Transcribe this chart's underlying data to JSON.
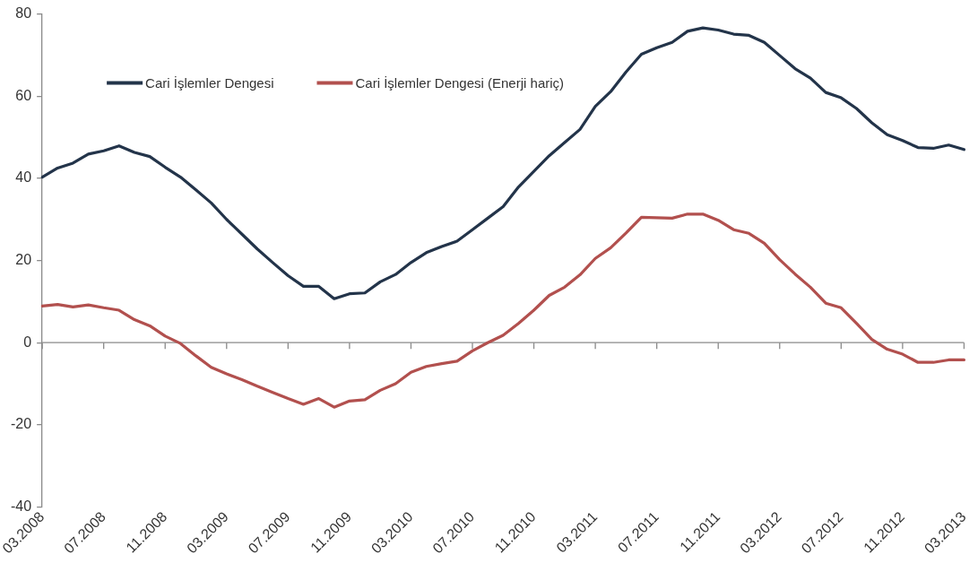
{
  "chart_data": {
    "type": "line",
    "categories": [
      "03.2008",
      null,
      null,
      null,
      "07.2008",
      null,
      null,
      null,
      "11.2008",
      null,
      null,
      null,
      "03.2009",
      null,
      null,
      null,
      "07.2009",
      null,
      null,
      null,
      "11.2009",
      null,
      null,
      null,
      "03.2010",
      null,
      null,
      null,
      "07.2010",
      null,
      null,
      null,
      "11.2010",
      null,
      null,
      null,
      "03.2011",
      null,
      null,
      null,
      "07.2011",
      null,
      null,
      null,
      "11.2011",
      null,
      null,
      null,
      "03.2012",
      null,
      null,
      null,
      "07.2012",
      null,
      null,
      null,
      "11.2012",
      null,
      null,
      null,
      "03.2013"
    ],
    "series": [
      {
        "name": "Cari İşlemler Dengesi",
        "color": "#23344a",
        "values": [
          40.3,
          42.5,
          43.7,
          45.9,
          46.7,
          47.9,
          46.3,
          45.3,
          42.7,
          40.3,
          37.2,
          34.0,
          30.0,
          26.4,
          22.8,
          19.5,
          16.3,
          13.7,
          13.7,
          10.7,
          11.9,
          12.1,
          14.8,
          16.6,
          19.5,
          21.9,
          23.4,
          24.7,
          27.5,
          30.3,
          33.1,
          37.9,
          41.7,
          45.5,
          48.7,
          51.9,
          57.5,
          61.1,
          65.9,
          70.2,
          71.8,
          73.1,
          75.8,
          76.6,
          76.1,
          75.1,
          74.8,
          73.1,
          69.9,
          66.7,
          64.4,
          60.9,
          59.6,
          57.0,
          53.5,
          50.6,
          49.2,
          47.5,
          47.3,
          48.1,
          47.0
        ]
      },
      {
        "name": "Cari İşlemler Dengesi (Enerji hariç)",
        "color": "#b2504e",
        "values": [
          8.9,
          9.3,
          8.7,
          9.2,
          8.5,
          7.9,
          5.6,
          4.1,
          1.6,
          -0.2,
          -3.2,
          -6.0,
          -7.6,
          -9.0,
          -10.6,
          -12.1,
          -13.6,
          -15.0,
          -13.6,
          -15.7,
          -14.2,
          -13.9,
          -11.6,
          -10.0,
          -7.2,
          -5.8,
          -5.1,
          -4.5,
          -2.0,
          0.0,
          1.8,
          4.7,
          7.9,
          11.5,
          13.5,
          16.5,
          20.5,
          23.1,
          26.7,
          30.5,
          30.4,
          30.3,
          31.3,
          31.3,
          29.8,
          27.5,
          26.6,
          24.2,
          20.2,
          16.7,
          13.5,
          9.6,
          8.5,
          4.7,
          0.8,
          -1.6,
          -2.8,
          -4.8,
          -4.8,
          -4.2,
          -4.2
        ]
      }
    ],
    "ylim": [
      -40,
      80
    ],
    "yticks": [
      -40,
      -20,
      0,
      20,
      40,
      60,
      80
    ],
    "ref_lines": [
      {
        "axis": "y",
        "value": 0,
        "color": "#8a8a8a",
        "line_style": "solid"
      }
    ],
    "grid": false,
    "legend": "top left",
    "marker": "none",
    "line_style": "solid"
  }
}
